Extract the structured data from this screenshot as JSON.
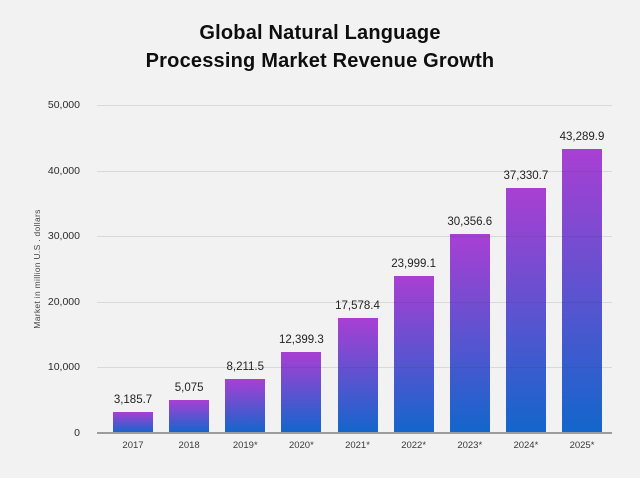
{
  "title": {
    "line1": "Global Natural Language",
    "line2": "Processing Market Revenue Growth"
  },
  "colors": {
    "background": "#f2f2f3",
    "gridline": "#dcdcdd",
    "axis_line": "#9c9c9c",
    "title_text": "#0e0e0e",
    "bar_gradient_top": "#a93fd3",
    "bar_gradient_bottom": "#1266cc"
  },
  "chart_data": {
    "type": "bar",
    "title": "Global Natural Language Processing Market Revenue Growth",
    "categories": [
      "2017",
      "2018",
      "2019*",
      "2020*",
      "2021*",
      "2022*",
      "2023*",
      "2024*",
      "2025*"
    ],
    "values": [
      3185.7,
      5075,
      8211.5,
      12399.3,
      17578.4,
      23999.1,
      30356.6,
      37330.7,
      43289.9
    ],
    "value_labels": [
      "3,185.7",
      "5,075",
      "8,211.5",
      "12,399.3",
      "17,578.4",
      "23,999.1",
      "30,356.6",
      "37,330.7",
      "43,289.9"
    ],
    "xlabel": "",
    "ylabel": "Market in million U.S . dollars",
    "ylim": [
      0,
      50000
    ],
    "yticks": [
      0,
      10000,
      20000,
      30000,
      40000,
      50000
    ],
    "ytick_labels": [
      "0",
      "10,000",
      "20,000",
      "30,000",
      "40,000",
      "50,000"
    ],
    "grid": true,
    "legend": false,
    "bar_gradient": {
      "top": "#a93fd3",
      "bottom": "#1266cc"
    }
  }
}
